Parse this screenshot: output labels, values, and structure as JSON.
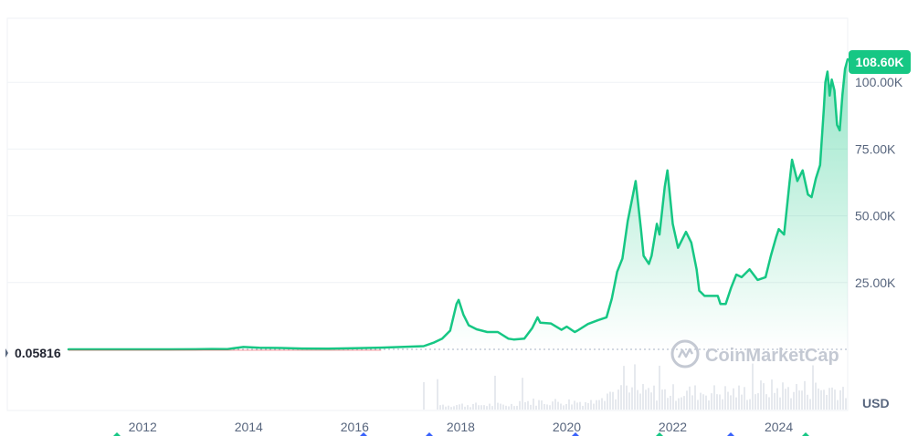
{
  "chart_data": {
    "type": "area",
    "title": "",
    "xlabel": "",
    "ylabel": "",
    "unit_label": "USD",
    "x_ticks": [
      "2012",
      "2014",
      "2016",
      "2018",
      "2020",
      "2022",
      "2024"
    ],
    "y_ticks": [
      "25.00K",
      "50.00K",
      "75.00K",
      "100.00K"
    ],
    "y_tick_values": [
      25000,
      50000,
      75000,
      100000
    ],
    "ylim": [
      0,
      125000
    ],
    "xlim": [
      2010.6,
      2025.3
    ],
    "current_price_label": "108.60K",
    "current_price": 108600,
    "baseline_label": "0.05816",
    "baseline_value": 0.05816,
    "watermark": "CoinMarketCap",
    "series": [
      {
        "color": "#16c784",
        "x": [
          2010.6,
          2011.0,
          2011.5,
          2012.0,
          2012.5,
          2013.0,
          2013.3,
          2013.6,
          2013.9,
          2014.2,
          2014.6,
          2015.0,
          2015.5,
          2016.0,
          2016.5,
          2017.0,
          2017.3,
          2017.5,
          2017.65,
          2017.8,
          2017.92,
          2017.96,
          2018.05,
          2018.15,
          2018.3,
          2018.5,
          2018.7,
          2018.9,
          2019.0,
          2019.2,
          2019.35,
          2019.45,
          2019.5,
          2019.7,
          2019.9,
          2020.0,
          2020.15,
          2020.2,
          2020.4,
          2020.6,
          2020.75,
          2020.85,
          2020.95,
          2021.05,
          2021.15,
          2021.25,
          2021.3,
          2021.4,
          2021.45,
          2021.55,
          2021.6,
          2021.7,
          2021.75,
          2021.85,
          2021.9,
          2022.0,
          2022.1,
          2022.25,
          2022.35,
          2022.45,
          2022.5,
          2022.6,
          2022.75,
          2022.85,
          2022.9,
          2023.0,
          2023.1,
          2023.2,
          2023.3,
          2023.45,
          2023.6,
          2023.75,
          2023.85,
          2023.95,
          2024.0,
          2024.1,
          2024.2,
          2024.25,
          2024.35,
          2024.45,
          2024.55,
          2024.62,
          2024.7,
          2024.78,
          2024.85,
          2024.88,
          2024.92,
          2024.96,
          2025.0,
          2025.05,
          2025.1,
          2025.15,
          2025.2,
          2025.25,
          2025.3
        ],
        "values": [
          0.06,
          2,
          5,
          6,
          12,
          20,
          140,
          110,
          900,
          600,
          500,
          300,
          250,
          430,
          650,
          1000,
          1200,
          2600,
          4000,
          7000,
          17000,
          18500,
          13000,
          9000,
          7500,
          6500,
          6500,
          4000,
          3700,
          4000,
          8000,
          12000,
          10000,
          9700,
          7300,
          8500,
          6500,
          7000,
          9500,
          11000,
          12000,
          19000,
          29000,
          34000,
          48000,
          58000,
          63000,
          45000,
          35000,
          32000,
          35000,
          47000,
          43000,
          61000,
          67000,
          47000,
          38000,
          44000,
          40000,
          30000,
          22000,
          20000,
          20000,
          20000,
          17000,
          17000,
          23000,
          28000,
          27000,
          30000,
          26000,
          27000,
          35000,
          42000,
          45000,
          43000,
          62000,
          71000,
          63000,
          67000,
          58000,
          57000,
          64000,
          69000,
          90000,
          100000,
          104000,
          95000,
          101000,
          97000,
          84000,
          82000,
          95000,
          105000,
          108600
        ]
      }
    ]
  }
}
